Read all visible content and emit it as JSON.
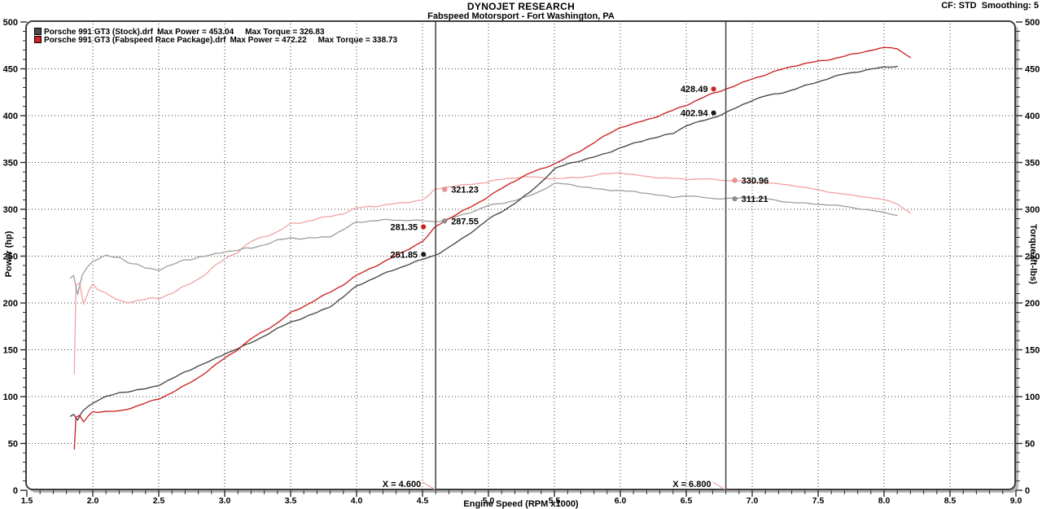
{
  "header": {
    "title": "DYNOJET RESEARCH",
    "subtitle": "Fabspeed Motorsport - Fort Washington, PA",
    "settings": "CF: STD  Smoothing: 5"
  },
  "legend": [
    {
      "name": "Porsche 991 GT3 (Stock).drf",
      "max_power": "Max Power = 453.04",
      "max_torque": "Max Torque = 326.83",
      "color": "#4a4a4a"
    },
    {
      "name": "Porsche 991 GT3 (Fabspeed Race Package).drf",
      "max_power": "Max Power = 472.22",
      "max_torque": "Max Torque = 338.73",
      "color": "#d61f1f"
    }
  ],
  "chart_data": {
    "type": "line",
    "title": "DYNOJET RESEARCH",
    "subtitle": "Fabspeed Motorsport - Fort Washington, PA",
    "x_axis": {
      "label": "Engine Speed (RPM x1000)",
      "min": 1.5,
      "max": 9.0,
      "major_step": 0.5,
      "minor_step": 0.1,
      "tick_labels": [
        "1.5",
        "2.0",
        "2.5",
        "3.0",
        "3.5",
        "4.0",
        "4.5",
        "5.0",
        "5.5",
        "6.0",
        "6.5",
        "7.0",
        "7.5",
        "8.0",
        "8.5",
        "9.0"
      ]
    },
    "y_left": {
      "label": "Power (hp)",
      "min": 0,
      "max": 500,
      "major_step": 50,
      "minor_step": 10,
      "tick_labels": [
        "0",
        "50",
        "100",
        "150",
        "200",
        "250",
        "300",
        "350",
        "400",
        "450",
        "500"
      ]
    },
    "y_right": {
      "label": "Torque (ft-lbs)",
      "min": 0,
      "max": 500,
      "major_step": 50,
      "minor_step": 10,
      "tick_labels": [
        "0",
        "50",
        "100",
        "150",
        "200",
        "250",
        "300",
        "350",
        "400",
        "450",
        "500"
      ]
    },
    "grid": "dotted",
    "torque_formula": "torque_ftlb = power_hp * 5252 / rpm",
    "series": [
      {
        "id": "stock_power",
        "name": "Porsche 991 GT3 (Stock) - Power",
        "axis": "left",
        "color": "#4b4b4b",
        "width": 1.4,
        "max_value": 453.04,
        "jitter_phase": 1.3,
        "points": [
          [
            1.83,
            79
          ],
          [
            1.855,
            81
          ],
          [
            1.885,
            75
          ],
          [
            1.92,
            84
          ],
          [
            1.96,
            89
          ],
          [
            2.0,
            93
          ],
          [
            2.1,
            99
          ],
          [
            2.2,
            104
          ],
          [
            2.3,
            106
          ],
          [
            2.4,
            109
          ],
          [
            2.5,
            113
          ],
          [
            2.6,
            119
          ],
          [
            2.7,
            126
          ],
          [
            2.8,
            132
          ],
          [
            2.9,
            138
          ],
          [
            3.0,
            146
          ],
          [
            3.1,
            152
          ],
          [
            3.2,
            158
          ],
          [
            3.3,
            165
          ],
          [
            3.4,
            172
          ],
          [
            3.5,
            179
          ],
          [
            3.6,
            184
          ],
          [
            3.7,
            190
          ],
          [
            3.8,
            197
          ],
          [
            3.9,
            207
          ],
          [
            4.0,
            218
          ],
          [
            4.1,
            224
          ],
          [
            4.2,
            230
          ],
          [
            4.3,
            236
          ],
          [
            4.4,
            242
          ],
          [
            4.5,
            247
          ],
          [
            4.6,
            251.85
          ],
          [
            4.7,
            259
          ],
          [
            4.8,
            268
          ],
          [
            4.9,
            278
          ],
          [
            5.0,
            289
          ],
          [
            5.1,
            298
          ],
          [
            5.2,
            307
          ],
          [
            5.3,
            317
          ],
          [
            5.4,
            329
          ],
          [
            5.5,
            342.2
          ],
          [
            5.6,
            348
          ],
          [
            5.7,
            352
          ],
          [
            5.8,
            356
          ],
          [
            5.9,
            361
          ],
          [
            6.0,
            366
          ],
          [
            6.1,
            370
          ],
          [
            6.2,
            374
          ],
          [
            6.3,
            377
          ],
          [
            6.4,
            381
          ],
          [
            6.5,
            390
          ],
          [
            6.6,
            394
          ],
          [
            6.7,
            398
          ],
          [
            6.8,
            402.94
          ],
          [
            6.9,
            409
          ],
          [
            7.0,
            416
          ],
          [
            7.1,
            421
          ],
          [
            7.2,
            424
          ],
          [
            7.3,
            428
          ],
          [
            7.4,
            432
          ],
          [
            7.5,
            436
          ],
          [
            7.6,
            440
          ],
          [
            7.7,
            444
          ],
          [
            7.8,
            447
          ],
          [
            7.9,
            450
          ],
          [
            8.0,
            452.5
          ],
          [
            8.05,
            453.04
          ],
          [
            8.1,
            452.6
          ]
        ]
      },
      {
        "id": "fabspeed_power",
        "name": "Porsche 991 GT3 (Fabspeed Race Package) - Power",
        "axis": "left",
        "color": "#cc2727",
        "width": 1.4,
        "max_value": 472.22,
        "jitter_phase": 4.1,
        "points": [
          [
            1.86,
            44
          ],
          [
            1.872,
            78
          ],
          [
            1.9,
            80
          ],
          [
            1.93,
            73
          ],
          [
            1.97,
            80
          ],
          [
            2.0,
            84
          ],
          [
            2.1,
            84.5
          ],
          [
            2.2,
            85
          ],
          [
            2.3,
            88.5
          ],
          [
            2.4,
            92.5
          ],
          [
            2.5,
            97
          ],
          [
            2.6,
            104
          ],
          [
            2.7,
            112
          ],
          [
            2.8,
            121
          ],
          [
            2.9,
            131
          ],
          [
            3.0,
            141
          ],
          [
            3.1,
            150
          ],
          [
            3.2,
            161
          ],
          [
            3.3,
            170
          ],
          [
            3.4,
            179
          ],
          [
            3.5,
            190
          ],
          [
            3.6,
            197
          ],
          [
            3.7,
            204
          ],
          [
            3.8,
            211
          ],
          [
            3.9,
            219
          ],
          [
            4.0,
            229
          ],
          [
            4.1,
            237
          ],
          [
            4.2,
            244
          ],
          [
            4.3,
            251
          ],
          [
            4.4,
            258
          ],
          [
            4.5,
            265
          ],
          [
            4.55,
            272
          ],
          [
            4.6,
            281.35
          ],
          [
            4.7,
            290
          ],
          [
            4.8,
            298
          ],
          [
            4.9,
            306
          ],
          [
            5.0,
            314
          ],
          [
            5.1,
            322
          ],
          [
            5.2,
            330
          ],
          [
            5.3,
            337
          ],
          [
            5.4,
            343
          ],
          [
            5.5,
            349
          ],
          [
            5.6,
            356
          ],
          [
            5.7,
            363
          ],
          [
            5.8,
            371
          ],
          [
            5.9,
            379
          ],
          [
            6.0,
            387
          ],
          [
            6.1,
            391
          ],
          [
            6.2,
            396
          ],
          [
            6.3,
            401
          ],
          [
            6.4,
            406
          ],
          [
            6.5,
            411
          ],
          [
            6.6,
            417
          ],
          [
            6.7,
            423
          ],
          [
            6.8,
            428.49
          ],
          [
            6.9,
            434
          ],
          [
            7.0,
            440
          ],
          [
            7.1,
            444
          ],
          [
            7.2,
            448
          ],
          [
            7.3,
            452
          ],
          [
            7.4,
            455
          ],
          [
            7.5,
            458
          ],
          [
            7.6,
            461
          ],
          [
            7.7,
            464
          ],
          [
            7.8,
            467
          ],
          [
            7.9,
            469.5
          ],
          [
            8.0,
            471.5
          ],
          [
            8.05,
            472.22
          ],
          [
            8.1,
            471
          ],
          [
            8.15,
            467
          ],
          [
            8.2,
            462
          ]
        ]
      },
      {
        "id": "stock_torque",
        "name": "Porsche 991 GT3 (Stock) - Torque",
        "axis": "right",
        "color": "#9d9d9d",
        "width": 1.3,
        "max_value": 326.83,
        "jitter_phase": 1.3,
        "derived_from": "stock_power"
      },
      {
        "id": "fabspeed_torque",
        "name": "Porsche 991 GT3 (Fabspeed Race Package) - Torque",
        "axis": "right",
        "color": "#f2a2a2",
        "width": 1.3,
        "max_value": 338.73,
        "jitter_phase": 4.1,
        "derived_from": "fabspeed_power"
      }
    ],
    "cursors": [
      {
        "x": 4.6,
        "label": "X = 4.600",
        "values": [
          {
            "series": "fabspeed_torque",
            "text": "321.23",
            "side": "right",
            "dot_color": "#ee8f8f"
          },
          {
            "series": "stock_torque",
            "text": "287.55",
            "side": "right",
            "dot_color": "#8f8f8f"
          },
          {
            "series": "fabspeed_power",
            "text": "281.35",
            "side": "left",
            "dot_color": "#d42020"
          },
          {
            "series": "stock_power",
            "text": "251.85",
            "side": "left",
            "dot_color": "#1a1a1a"
          }
        ]
      },
      {
        "x": 6.8,
        "label": "X = 6.800",
        "values": [
          {
            "series": "fabspeed_power",
            "text": "428.49",
            "side": "left",
            "dot_color": "#d42020"
          },
          {
            "series": "stock_power",
            "text": "402.94",
            "side": "left",
            "dot_color": "#1a1a1a"
          },
          {
            "series": "fabspeed_torque",
            "text": "330.96",
            "side": "right",
            "dot_color": "#ee8f8f"
          },
          {
            "series": "stock_torque",
            "text": "311.21",
            "side": "right",
            "dot_color": "#8f8f8f"
          }
        ]
      }
    ]
  }
}
